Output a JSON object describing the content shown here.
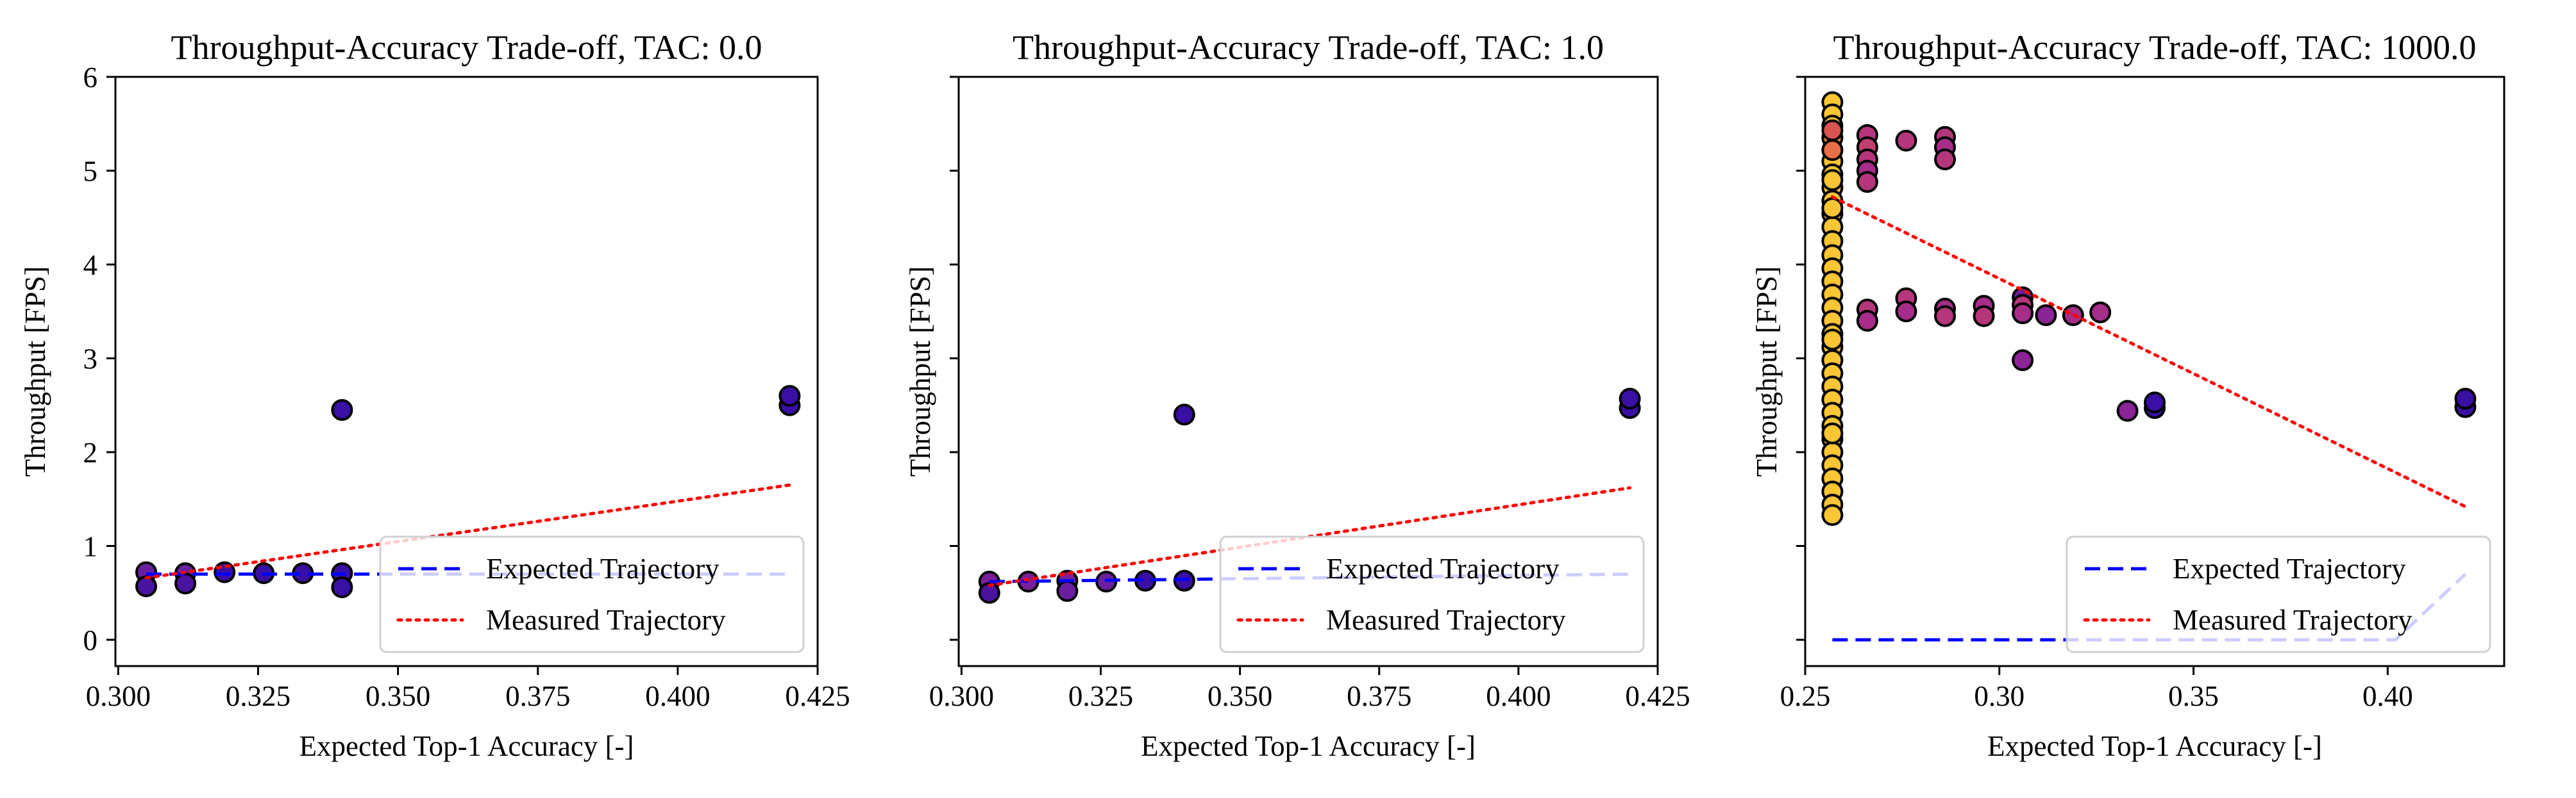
{
  "figure": {
    "colors": {
      "expected_line": "#0000ff",
      "measured_line": "#ff0000",
      "point_edge": "#000000",
      "legend_border": "#d0d0d0"
    }
  },
  "chart_data": [
    {
      "type": "scatter",
      "title": "Throughput-Accuracy Trade-off, TAC: 0.0",
      "xlabel": "Expected Top-1 Accuracy [-]",
      "ylabel": "Throughput [FPS]",
      "xlim": [
        0.2995,
        0.425
      ],
      "ylim": [
        -0.28,
        6.0
      ],
      "x_ticks": [
        0.3,
        0.325,
        0.35,
        0.375,
        0.4,
        0.425
      ],
      "x_tick_labels": [
        "0.300",
        "0.325",
        "0.350",
        "0.375",
        "0.400",
        "0.425"
      ],
      "y_ticks": [
        0,
        1,
        2,
        3,
        4,
        5,
        6
      ],
      "y_tick_labels": [
        "0",
        "1",
        "2",
        "3",
        "4",
        "5",
        "6"
      ],
      "grid": false,
      "legend": {
        "position": "lower-right",
        "entries": [
          {
            "label": "Expected Trajectory",
            "style": "dashed",
            "color": "#0000ff"
          },
          {
            "label": "Measured Trajectory",
            "style": "dotted",
            "color": "#ff0000"
          }
        ]
      },
      "series": [
        {
          "style": "dashed",
          "color": "#0000ff",
          "points": [
            [
              0.305,
              0.7
            ],
            [
              0.42,
              0.7
            ]
          ]
        },
        {
          "style": "dotted",
          "color": "#ff0000",
          "points": [
            [
              0.305,
              0.66
            ],
            [
              0.42,
              1.65
            ]
          ]
        }
      ],
      "points": [
        {
          "x": 0.305,
          "y": 0.72,
          "color": "#6a1fa0"
        },
        {
          "x": 0.305,
          "y": 0.57,
          "color": "#4a14a0"
        },
        {
          "x": 0.312,
          "y": 0.71,
          "color": "#6a1fa0"
        },
        {
          "x": 0.312,
          "y": 0.6,
          "color": "#4a14a0"
        },
        {
          "x": 0.319,
          "y": 0.72,
          "color": "#3a0fa5"
        },
        {
          "x": 0.326,
          "y": 0.71,
          "color": "#3a0fa5"
        },
        {
          "x": 0.333,
          "y": 0.71,
          "color": "#3a0fa5"
        },
        {
          "x": 0.34,
          "y": 0.71,
          "color": "#3a0fa5"
        },
        {
          "x": 0.34,
          "y": 0.56,
          "color": "#3a0fa5"
        },
        {
          "x": 0.34,
          "y": 2.45,
          "color": "#3a0fa5"
        },
        {
          "x": 0.42,
          "y": 2.5,
          "color": "#3a0fa5"
        },
        {
          "x": 0.42,
          "y": 2.6,
          "color": "#3a0fa5"
        }
      ]
    },
    {
      "type": "scatter",
      "title": "Throughput-Accuracy Trade-off, TAC: 1.0",
      "xlabel": "Expected Top-1 Accuracy [-]",
      "ylabel": "Throughput [FPS]",
      "xlim": [
        0.2995,
        0.425
      ],
      "ylim": [
        -0.28,
        6.0
      ],
      "x_ticks": [
        0.3,
        0.325,
        0.35,
        0.375,
        0.4,
        0.425
      ],
      "x_tick_labels": [
        "0.300",
        "0.325",
        "0.350",
        "0.375",
        "0.400",
        "0.425"
      ],
      "y_ticks": [
        0,
        1,
        2,
        3,
        4,
        5,
        6
      ],
      "y_tick_labels": [],
      "grid": false,
      "legend": {
        "position": "lower-right",
        "entries": [
          {
            "label": "Expected Trajectory",
            "style": "dashed",
            "color": "#0000ff"
          },
          {
            "label": "Measured Trajectory",
            "style": "dotted",
            "color": "#ff0000"
          }
        ]
      },
      "series": [
        {
          "style": "dashed",
          "color": "#0000ff",
          "points": [
            [
              0.305,
              0.62
            ],
            [
              0.42,
              0.7
            ]
          ]
        },
        {
          "style": "dotted",
          "color": "#ff0000",
          "points": [
            [
              0.305,
              0.58
            ],
            [
              0.42,
              1.62
            ]
          ]
        }
      ],
      "points": [
        {
          "x": 0.305,
          "y": 0.62,
          "color": "#7a1f9a"
        },
        {
          "x": 0.305,
          "y": 0.5,
          "color": "#4a14a0"
        },
        {
          "x": 0.312,
          "y": 0.62,
          "color": "#7a1f9a"
        },
        {
          "x": 0.319,
          "y": 0.63,
          "color": "#7a1f9a"
        },
        {
          "x": 0.319,
          "y": 0.52,
          "color": "#6a1fa0"
        },
        {
          "x": 0.326,
          "y": 0.62,
          "color": "#6a1fa0"
        },
        {
          "x": 0.333,
          "y": 0.63,
          "color": "#3a0fa5"
        },
        {
          "x": 0.34,
          "y": 0.63,
          "color": "#3a0fa5"
        },
        {
          "x": 0.34,
          "y": 2.4,
          "color": "#3a0fa5"
        },
        {
          "x": 0.42,
          "y": 2.47,
          "color": "#3a0fa5"
        },
        {
          "x": 0.42,
          "y": 2.57,
          "color": "#3a0fa5"
        }
      ]
    },
    {
      "type": "scatter",
      "title": "Throughput-Accuracy Trade-off, TAC: 1000.0",
      "xlabel": "Expected Top-1 Accuracy [-]",
      "ylabel": "Throughput [FPS]",
      "xlim": [
        0.25,
        0.43
      ],
      "ylim": [
        -0.28,
        6.0
      ],
      "x_ticks": [
        0.25,
        0.3,
        0.35,
        0.4
      ],
      "x_tick_labels": [
        "0.25",
        "0.30",
        "0.35",
        "0.40"
      ],
      "y_ticks": [
        0,
        1,
        2,
        3,
        4,
        5,
        6
      ],
      "y_tick_labels": [],
      "grid": false,
      "legend": {
        "position": "lower-right",
        "entries": [
          {
            "label": "Expected Trajectory",
            "style": "dashed",
            "color": "#0000ff"
          },
          {
            "label": "Measured Trajectory",
            "style": "dotted",
            "color": "#ff0000"
          }
        ]
      },
      "series": [
        {
          "style": "dashed",
          "color": "#0000ff",
          "points": [
            [
              0.257,
              0.0
            ],
            [
              0.402,
              0.0
            ],
            [
              0.42,
              0.7
            ]
          ]
        },
        {
          "style": "dotted",
          "color": "#ff0000",
          "points": [
            [
              0.257,
              4.72
            ],
            [
              0.42,
              1.42
            ]
          ]
        }
      ],
      "points": [
        {
          "x": 0.257,
          "y": 5.73,
          "color": "#fbc534"
        },
        {
          "x": 0.257,
          "y": 5.6,
          "color": "#fbc534"
        },
        {
          "x": 0.257,
          "y": 5.48,
          "color": "#fbc534"
        },
        {
          "x": 0.257,
          "y": 5.35,
          "color": "#fbc534"
        },
        {
          "x": 0.257,
          "y": 5.22,
          "color": "#fbc534"
        },
        {
          "x": 0.257,
          "y": 5.1,
          "color": "#fbc534"
        },
        {
          "x": 0.257,
          "y": 4.96,
          "color": "#fbc534"
        },
        {
          "x": 0.257,
          "y": 4.82,
          "color": "#fbc534"
        },
        {
          "x": 0.257,
          "y": 4.68,
          "color": "#fbc534"
        },
        {
          "x": 0.257,
          "y": 4.54,
          "color": "#fbc534"
        },
        {
          "x": 0.257,
          "y": 4.4,
          "color": "#fbc534"
        },
        {
          "x": 0.257,
          "y": 4.25,
          "color": "#fbc534"
        },
        {
          "x": 0.257,
          "y": 4.1,
          "color": "#fbc534"
        },
        {
          "x": 0.257,
          "y": 3.96,
          "color": "#fbc534"
        },
        {
          "x": 0.257,
          "y": 3.82,
          "color": "#fbc534"
        },
        {
          "x": 0.257,
          "y": 3.68,
          "color": "#fbc534"
        },
        {
          "x": 0.257,
          "y": 3.54,
          "color": "#fbc534"
        },
        {
          "x": 0.257,
          "y": 3.4,
          "color": "#fbc534"
        },
        {
          "x": 0.257,
          "y": 3.26,
          "color": "#fbc534"
        },
        {
          "x": 0.257,
          "y": 3.12,
          "color": "#fbc534"
        },
        {
          "x": 0.257,
          "y": 2.98,
          "color": "#fbc534"
        },
        {
          "x": 0.257,
          "y": 2.84,
          "color": "#fbc534"
        },
        {
          "x": 0.257,
          "y": 2.7,
          "color": "#fbc534"
        },
        {
          "x": 0.257,
          "y": 2.56,
          "color": "#fbc534"
        },
        {
          "x": 0.257,
          "y": 2.42,
          "color": "#fbc534"
        },
        {
          "x": 0.257,
          "y": 2.28,
          "color": "#fbc534"
        },
        {
          "x": 0.257,
          "y": 2.14,
          "color": "#fbc534"
        },
        {
          "x": 0.257,
          "y": 2.0,
          "color": "#fbc534"
        },
        {
          "x": 0.257,
          "y": 1.86,
          "color": "#fbc534"
        },
        {
          "x": 0.257,
          "y": 1.72,
          "color": "#fbc534"
        },
        {
          "x": 0.257,
          "y": 1.58,
          "color": "#fbc534"
        },
        {
          "x": 0.257,
          "y": 1.44,
          "color": "#fbc534"
        },
        {
          "x": 0.257,
          "y": 1.33,
          "color": "#fbc534"
        },
        {
          "x": 0.257,
          "y": 5.35,
          "color": "#f08a3a"
        },
        {
          "x": 0.257,
          "y": 5.22,
          "color": "#e86f47"
        },
        {
          "x": 0.257,
          "y": 5.43,
          "color": "#d9544f"
        },
        {
          "x": 0.257,
          "y": 4.9,
          "color": "#fbc534"
        },
        {
          "x": 0.257,
          "y": 4.6,
          "color": "#fbc534"
        },
        {
          "x": 0.257,
          "y": 3.2,
          "color": "#fbc534"
        },
        {
          "x": 0.257,
          "y": 2.2,
          "color": "#fbc534"
        },
        {
          "x": 0.266,
          "y": 5.38,
          "color": "#b5367b"
        },
        {
          "x": 0.266,
          "y": 5.25,
          "color": "#c13f6e"
        },
        {
          "x": 0.266,
          "y": 5.12,
          "color": "#b5367b"
        },
        {
          "x": 0.266,
          "y": 5.0,
          "color": "#a62d89"
        },
        {
          "x": 0.266,
          "y": 4.88,
          "color": "#b5367b"
        },
        {
          "x": 0.266,
          "y": 3.52,
          "color": "#b5367b"
        },
        {
          "x": 0.266,
          "y": 3.4,
          "color": "#a62d89"
        },
        {
          "x": 0.276,
          "y": 5.32,
          "color": "#b5367b"
        },
        {
          "x": 0.276,
          "y": 3.64,
          "color": "#b5367b"
        },
        {
          "x": 0.276,
          "y": 3.5,
          "color": "#a62d89"
        },
        {
          "x": 0.286,
          "y": 5.36,
          "color": "#b5367b"
        },
        {
          "x": 0.286,
          "y": 5.25,
          "color": "#a62d89"
        },
        {
          "x": 0.286,
          "y": 5.12,
          "color": "#b5367b"
        },
        {
          "x": 0.286,
          "y": 3.53,
          "color": "#a62d89"
        },
        {
          "x": 0.286,
          "y": 3.45,
          "color": "#b5367b"
        },
        {
          "x": 0.296,
          "y": 3.56,
          "color": "#a62d89"
        },
        {
          "x": 0.296,
          "y": 3.45,
          "color": "#b5367b"
        },
        {
          "x": 0.306,
          "y": 3.65,
          "color": "#6a1fa0"
        },
        {
          "x": 0.306,
          "y": 3.57,
          "color": "#b5367b"
        },
        {
          "x": 0.306,
          "y": 3.48,
          "color": "#a62d89"
        },
        {
          "x": 0.306,
          "y": 2.98,
          "color": "#8a2497"
        },
        {
          "x": 0.312,
          "y": 3.46,
          "color": "#8a2497"
        },
        {
          "x": 0.319,
          "y": 3.46,
          "color": "#a62d89"
        },
        {
          "x": 0.326,
          "y": 3.49,
          "color": "#a62d89"
        },
        {
          "x": 0.333,
          "y": 2.44,
          "color": "#8a2497"
        },
        {
          "x": 0.34,
          "y": 2.47,
          "color": "#3a0fa5"
        },
        {
          "x": 0.34,
          "y": 2.53,
          "color": "#3a0fa5"
        },
        {
          "x": 0.42,
          "y": 2.48,
          "color": "#3a0fa5"
        },
        {
          "x": 0.42,
          "y": 2.57,
          "color": "#3a0fa5"
        }
      ]
    }
  ]
}
